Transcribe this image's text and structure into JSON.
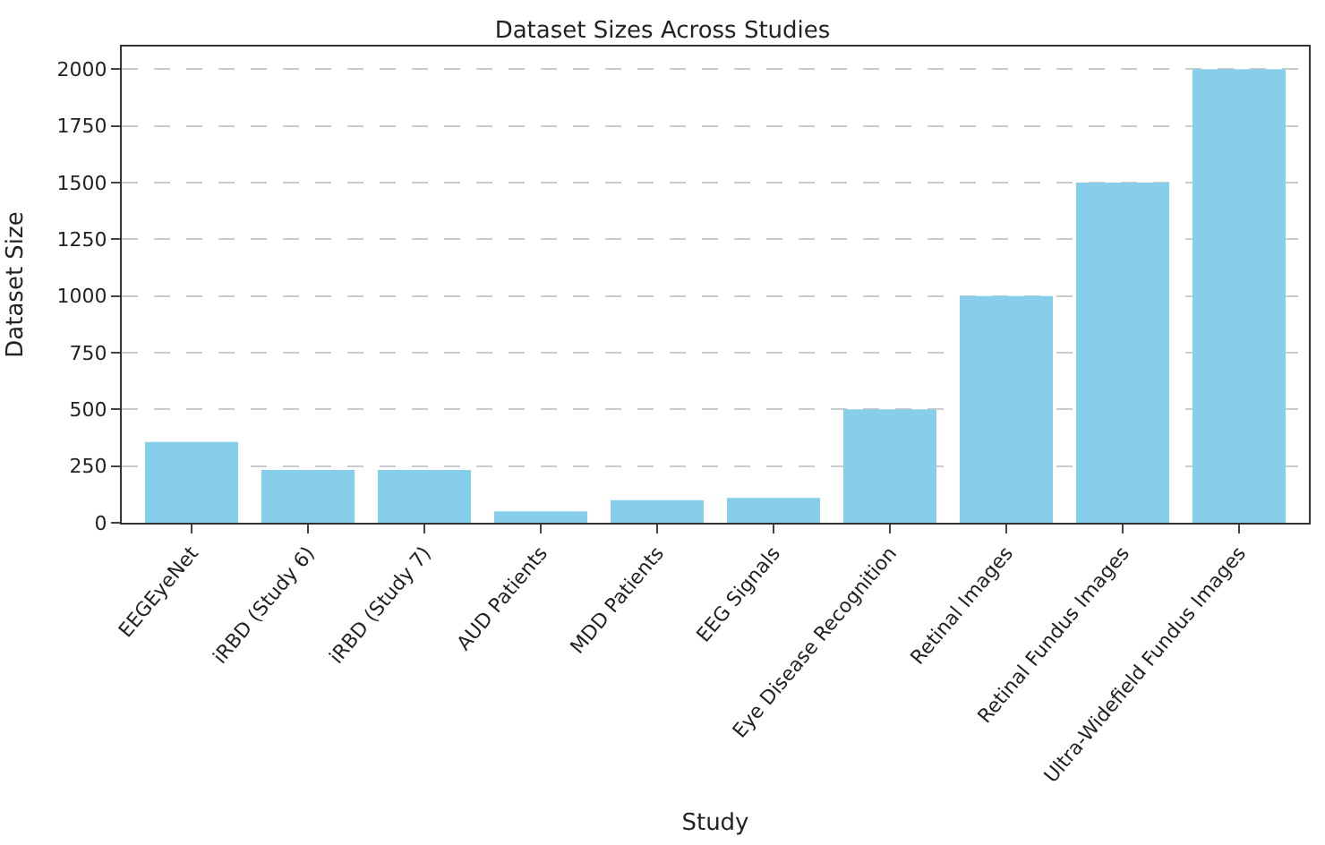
{
  "chart_data": {
    "type": "bar",
    "title": "Dataset Sizes Across Studies",
    "xlabel": "Study",
    "ylabel": "Dataset Size",
    "categories": [
      "EEGEyeNet",
      "iRBD (Study 6)",
      "iRBD (Study 7)",
      "AUD Patients",
      "MDD Patients",
      "EEG Signals",
      "Eye Disease Recognition",
      "Retinal Images",
      "Retinal Fundus Images",
      "Ultra-Widefield Fundus Images"
    ],
    "values": [
      356,
      233,
      233,
      50,
      100,
      110,
      500,
      1000,
      1500,
      2000
    ],
    "color": "#87ceeb",
    "ylim": [
      0,
      2100
    ],
    "yticks": [
      0,
      250,
      500,
      750,
      1000,
      1250,
      1500,
      1750,
      2000
    ],
    "grid": "y"
  }
}
